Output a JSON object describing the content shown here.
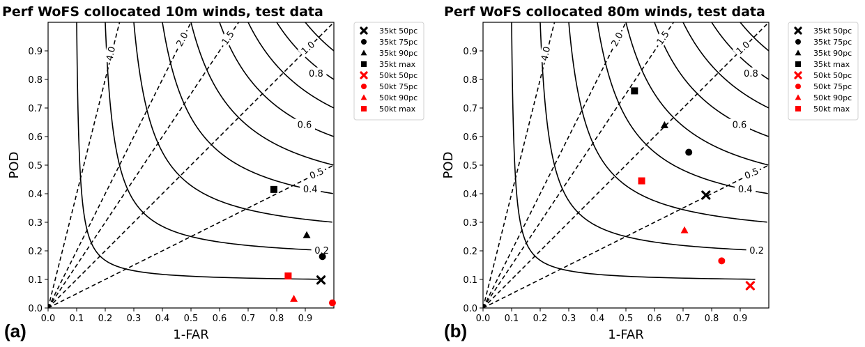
{
  "chart_data": [
    {
      "type": "scatter",
      "panel_label": "(a)",
      "title": "Perf WoFS collocated 10m winds, test data",
      "xlabel": "1-FAR",
      "ylabel": "POD",
      "xlim": [
        0,
        1
      ],
      "ylim": [
        0,
        1
      ],
      "xticks": [
        "0.0",
        "0.1",
        "0.2",
        "0.3",
        "0.4",
        "0.5",
        "0.6",
        "0.7",
        "0.8",
        "0.9"
      ],
      "yticks": [
        "0.0",
        "0.1",
        "0.2",
        "0.3",
        "0.4",
        "0.5",
        "0.6",
        "0.7",
        "0.8",
        "0.9"
      ],
      "csi_contours": [
        "0.2",
        "0.4",
        "0.6",
        "0.8"
      ],
      "bias_lines": [
        "4.0",
        "2.0",
        "1.5",
        "1.0",
        "0.5"
      ],
      "legend_position": "outside-right",
      "series": [
        {
          "name": "35kt 50pc",
          "marker": "x",
          "color": "#000000",
          "x": 0.955,
          "y": 0.098
        },
        {
          "name": "35kt 75pc",
          "marker": "circle",
          "color": "#000000",
          "x": 0.96,
          "y": 0.18
        },
        {
          "name": "35kt 90pc",
          "marker": "triangle",
          "color": "#000000",
          "x": 0.905,
          "y": 0.255
        },
        {
          "name": "35kt max",
          "marker": "square",
          "color": "#000000",
          "x": 0.79,
          "y": 0.415
        },
        {
          "name": "50kt 50pc",
          "marker": "x",
          "color": "#ff0000",
          "x": null,
          "y": null
        },
        {
          "name": "50kt 75pc",
          "marker": "circle",
          "color": "#ff0000",
          "x": 0.995,
          "y": 0.018
        },
        {
          "name": "50kt 90pc",
          "marker": "triangle",
          "color": "#ff0000",
          "x": 0.86,
          "y": 0.032
        },
        {
          "name": "50kt max",
          "marker": "square",
          "color": "#ff0000",
          "x": 0.84,
          "y": 0.112
        }
      ]
    },
    {
      "type": "scatter",
      "panel_label": "(b)",
      "title": "Perf WoFS collocated 80m winds, test data",
      "xlabel": "1-FAR",
      "ylabel": "POD",
      "xlim": [
        0,
        1
      ],
      "ylim": [
        0,
        1
      ],
      "xticks": [
        "0.0",
        "0.1",
        "0.2",
        "0.3",
        "0.4",
        "0.5",
        "0.6",
        "0.7",
        "0.8",
        "0.9"
      ],
      "yticks": [
        "0.0",
        "0.1",
        "0.2",
        "0.3",
        "0.4",
        "0.5",
        "0.6",
        "0.7",
        "0.8",
        "0.9"
      ],
      "csi_contours": [
        "0.2",
        "0.4",
        "0.6",
        "0.8"
      ],
      "bias_lines": [
        "4.0",
        "2.0",
        "1.5",
        "1.0",
        "0.5"
      ],
      "legend_position": "outside-right",
      "series": [
        {
          "name": "35kt 50pc",
          "marker": "x",
          "color": "#000000",
          "x": 0.78,
          "y": 0.395
        },
        {
          "name": "35kt 75pc",
          "marker": "circle",
          "color": "#000000",
          "x": 0.72,
          "y": 0.545
        },
        {
          "name": "35kt 90pc",
          "marker": "triangle",
          "color": "#000000",
          "x": 0.635,
          "y": 0.64
        },
        {
          "name": "35kt max",
          "marker": "square",
          "color": "#000000",
          "x": 0.53,
          "y": 0.76
        },
        {
          "name": "50kt 50pc",
          "marker": "x",
          "color": "#ff0000",
          "x": 0.935,
          "y": 0.078
        },
        {
          "name": "50kt 75pc",
          "marker": "circle",
          "color": "#ff0000",
          "x": 0.835,
          "y": 0.165
        },
        {
          "name": "50kt 90pc",
          "marker": "triangle",
          "color": "#ff0000",
          "x": 0.705,
          "y": 0.272
        },
        {
          "name": "50kt max",
          "marker": "square",
          "color": "#ff0000",
          "x": 0.555,
          "y": 0.445
        }
      ]
    }
  ]
}
